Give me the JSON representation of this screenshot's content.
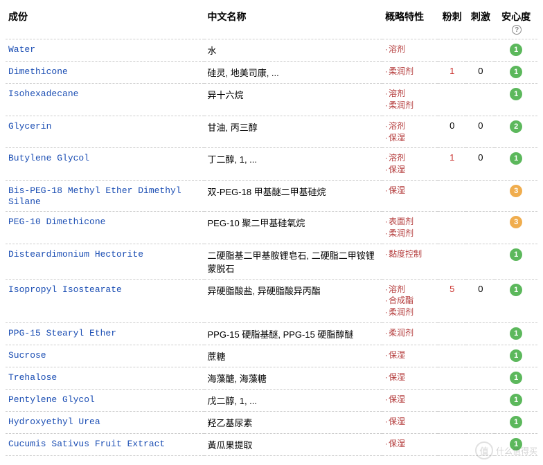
{
  "headers": {
    "ingredient": "成份",
    "cn_name": "中文名称",
    "property": "概略特性",
    "comedogenic": "粉刺",
    "irritation": "刺激",
    "safety": "安心度"
  },
  "help_icon": "?",
  "safety_colors": {
    "green": "#5cb85c",
    "green2": "#5cb85c",
    "orange": "#f0ad4e"
  },
  "rows": [
    {
      "ingredient": "Water",
      "cn": "水",
      "props": [
        "溶剂"
      ],
      "comedo": "",
      "irrit": "",
      "safety": "1",
      "safety_color": "#5cb85c"
    },
    {
      "ingredient": "Dimethicone",
      "cn": "硅灵, 地美司康, ...",
      "props": [
        "柔润剂"
      ],
      "comedo": "1",
      "comedo_hi": true,
      "irrit": "0",
      "safety": "1",
      "safety_color": "#5cb85c"
    },
    {
      "ingredient": "Isohexadecane",
      "cn": "异十六烷",
      "props": [
        "溶剂",
        "柔润剂"
      ],
      "comedo": "",
      "irrit": "",
      "safety": "1",
      "safety_color": "#5cb85c"
    },
    {
      "ingredient": "Glycerin",
      "cn": "甘油, 丙三醇",
      "props": [
        "溶剂",
        "保湿"
      ],
      "comedo": "0",
      "irrit": "0",
      "safety": "2",
      "safety_color": "#5cb85c"
    },
    {
      "ingredient": "Butylene Glycol",
      "cn": "丁二醇, 1, ...",
      "props": [
        "溶剂",
        "保湿"
      ],
      "comedo": "1",
      "comedo_hi": true,
      "irrit": "0",
      "safety": "1",
      "safety_color": "#5cb85c"
    },
    {
      "ingredient": "Bis-PEG-18 Methyl Ether Dimethyl Silane",
      "cn": "双-PEG-18 甲基醚二甲基硅烷",
      "props": [
        "保湿"
      ],
      "comedo": "",
      "irrit": "",
      "safety": "3",
      "safety_color": "#f0ad4e"
    },
    {
      "ingredient": "PEG-10 Dimethicone",
      "cn": "PEG-10 聚二甲基硅氧烷",
      "props": [
        "表面剂",
        "柔润剂"
      ],
      "comedo": "",
      "irrit": "",
      "safety": "3",
      "safety_color": "#f0ad4e"
    },
    {
      "ingredient": "Disteardimonium Hectorite",
      "cn": "二硬脂基二甲基胺锂皂石, 二硬脂二甲铵锂蒙脱石",
      "props": [
        "黏度控制"
      ],
      "comedo": "",
      "irrit": "",
      "safety": "1",
      "safety_color": "#5cb85c"
    },
    {
      "ingredient": "Isopropyl Isostearate",
      "cn": "异硬脂酸盐, 异硬脂酸异丙酯",
      "props": [
        "溶剂",
        "合成酯",
        "柔润剂"
      ],
      "comedo": "5",
      "comedo_hi": true,
      "irrit": "0",
      "safety": "1",
      "safety_color": "#5cb85c"
    },
    {
      "ingredient": "PPG-15 Stearyl Ether",
      "cn": "PPG-15 硬脂基醚, PPG-15 硬脂醇醚",
      "props": [
        "柔润剂"
      ],
      "comedo": "",
      "irrit": "",
      "safety": "1",
      "safety_color": "#5cb85c"
    },
    {
      "ingredient": "Sucrose",
      "cn": "蔗糖",
      "props": [
        "保湿"
      ],
      "comedo": "",
      "irrit": "",
      "safety": "1",
      "safety_color": "#5cb85c"
    },
    {
      "ingredient": "Trehalose",
      "cn": "海藻醣, 海藻糖",
      "props": [
        "保湿"
      ],
      "comedo": "",
      "irrit": "",
      "safety": "1",
      "safety_color": "#5cb85c"
    },
    {
      "ingredient": "Pentylene Glycol",
      "cn": "戊二醇, 1, ...",
      "props": [
        "保湿"
      ],
      "comedo": "",
      "irrit": "",
      "safety": "1",
      "safety_color": "#5cb85c"
    },
    {
      "ingredient": "Hydroxyethyl Urea",
      "cn": "羟乙基尿素",
      "props": [
        "保湿"
      ],
      "comedo": "",
      "irrit": "",
      "safety": "1",
      "safety_color": "#5cb85c"
    },
    {
      "ingredient": "Cucumis Sativus Fruit Extract",
      "cn": "黃瓜果提取",
      "props": [
        "保湿"
      ],
      "comedo": "",
      "irrit": "",
      "safety": "1",
      "safety_color": "#5cb85c"
    }
  ],
  "watermark": {
    "symbol": "值",
    "text": "什么值得买"
  }
}
